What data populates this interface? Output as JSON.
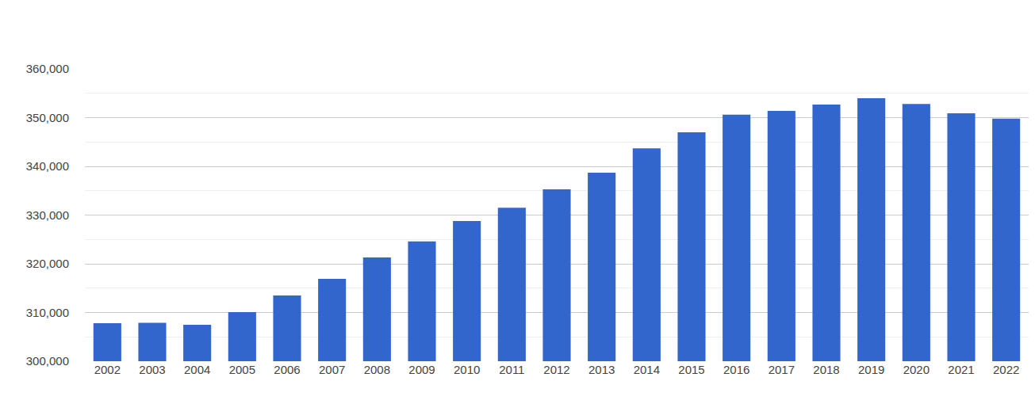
{
  "chart_data": {
    "type": "bar",
    "categories": [
      "2002",
      "2003",
      "2004",
      "2005",
      "2006",
      "2007",
      "2008",
      "2009",
      "2010",
      "2011",
      "2012",
      "2013",
      "2014",
      "2015",
      "2016",
      "2017",
      "2018",
      "2019",
      "2020",
      "2021",
      "2022"
    ],
    "values": [
      307800,
      307900,
      307500,
      310100,
      313500,
      316900,
      321300,
      324600,
      328800,
      331500,
      335300,
      338700,
      343700,
      347000,
      350600,
      351400,
      352700,
      354000,
      352800,
      350900,
      349800
    ],
    "color": "#3366cc",
    "ylim": [
      300000,
      360000
    ],
    "yticks": [
      {
        "value": 300000,
        "label": "300,000"
      },
      {
        "value": 310000,
        "label": "310,000"
      },
      {
        "value": 320000,
        "label": "320,000"
      },
      {
        "value": 330000,
        "label": "330,000"
      },
      {
        "value": 340000,
        "label": "340,000"
      },
      {
        "value": 350000,
        "label": "350,000"
      },
      {
        "value": 360000,
        "label": "360,000"
      }
    ],
    "grid": true
  }
}
